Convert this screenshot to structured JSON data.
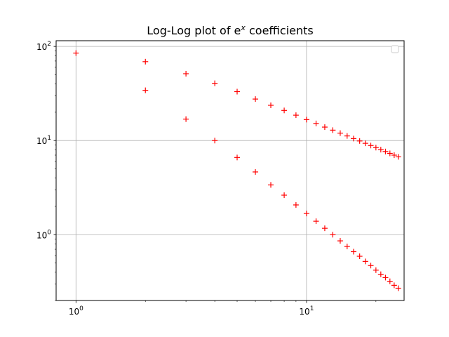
{
  "chart_data": {
    "type": "scatter",
    "title": {
      "base": "Log-Log plot of e",
      "superscript": "x",
      "suffix": " coefficients"
    },
    "xlabel": "",
    "ylabel": "",
    "xscale": "log",
    "yscale": "log",
    "xlim": [
      0.82,
      26.5
    ],
    "ylim": [
      0.2,
      115
    ],
    "grid": true,
    "legend": {
      "placement": "top-right",
      "entries": []
    },
    "marker": {
      "shape": "+",
      "color": "#ff0000"
    },
    "xticks": [
      {
        "value": 1,
        "base": "10",
        "exp": "0"
      },
      {
        "value": 10,
        "base": "10",
        "exp": "1"
      }
    ],
    "yticks": [
      {
        "value": 1,
        "base": "10",
        "exp": "0"
      },
      {
        "value": 10,
        "base": "10",
        "exp": "1"
      },
      {
        "value": 100,
        "base": "10",
        "exp": "2"
      }
    ],
    "series": [
      {
        "x": [
          1,
          2,
          3,
          4,
          5,
          6,
          7,
          8,
          9,
          10,
          11,
          12,
          13,
          14,
          15,
          16,
          17,
          18,
          19,
          20,
          21,
          22,
          23,
          24,
          25
        ],
        "y": [
          85,
          68.9,
          51.3,
          40.6,
          33.1,
          27.6,
          23.7,
          20.9,
          18.6,
          16.7,
          15.2,
          13.9,
          12.9,
          12.0,
          11.2,
          10.5,
          9.9,
          9.35,
          8.86,
          8.42,
          8.01,
          7.65,
          7.31,
          7.0,
          6.72
        ]
      },
      {
        "x": [
          2,
          3,
          4,
          5,
          6,
          7,
          8,
          9,
          10,
          11,
          12,
          13,
          14,
          15,
          16,
          17,
          18,
          19,
          20,
          21,
          22,
          23,
          24,
          25
        ],
        "y": [
          34.2,
          16.9,
          10.0,
          6.61,
          4.64,
          3.38,
          2.63,
          2.07,
          1.68,
          1.39,
          1.17,
          1.0,
          0.86,
          0.75,
          0.66,
          0.59,
          0.52,
          0.47,
          0.42,
          0.38,
          0.35,
          0.32,
          0.29,
          0.27
        ]
      }
    ]
  }
}
